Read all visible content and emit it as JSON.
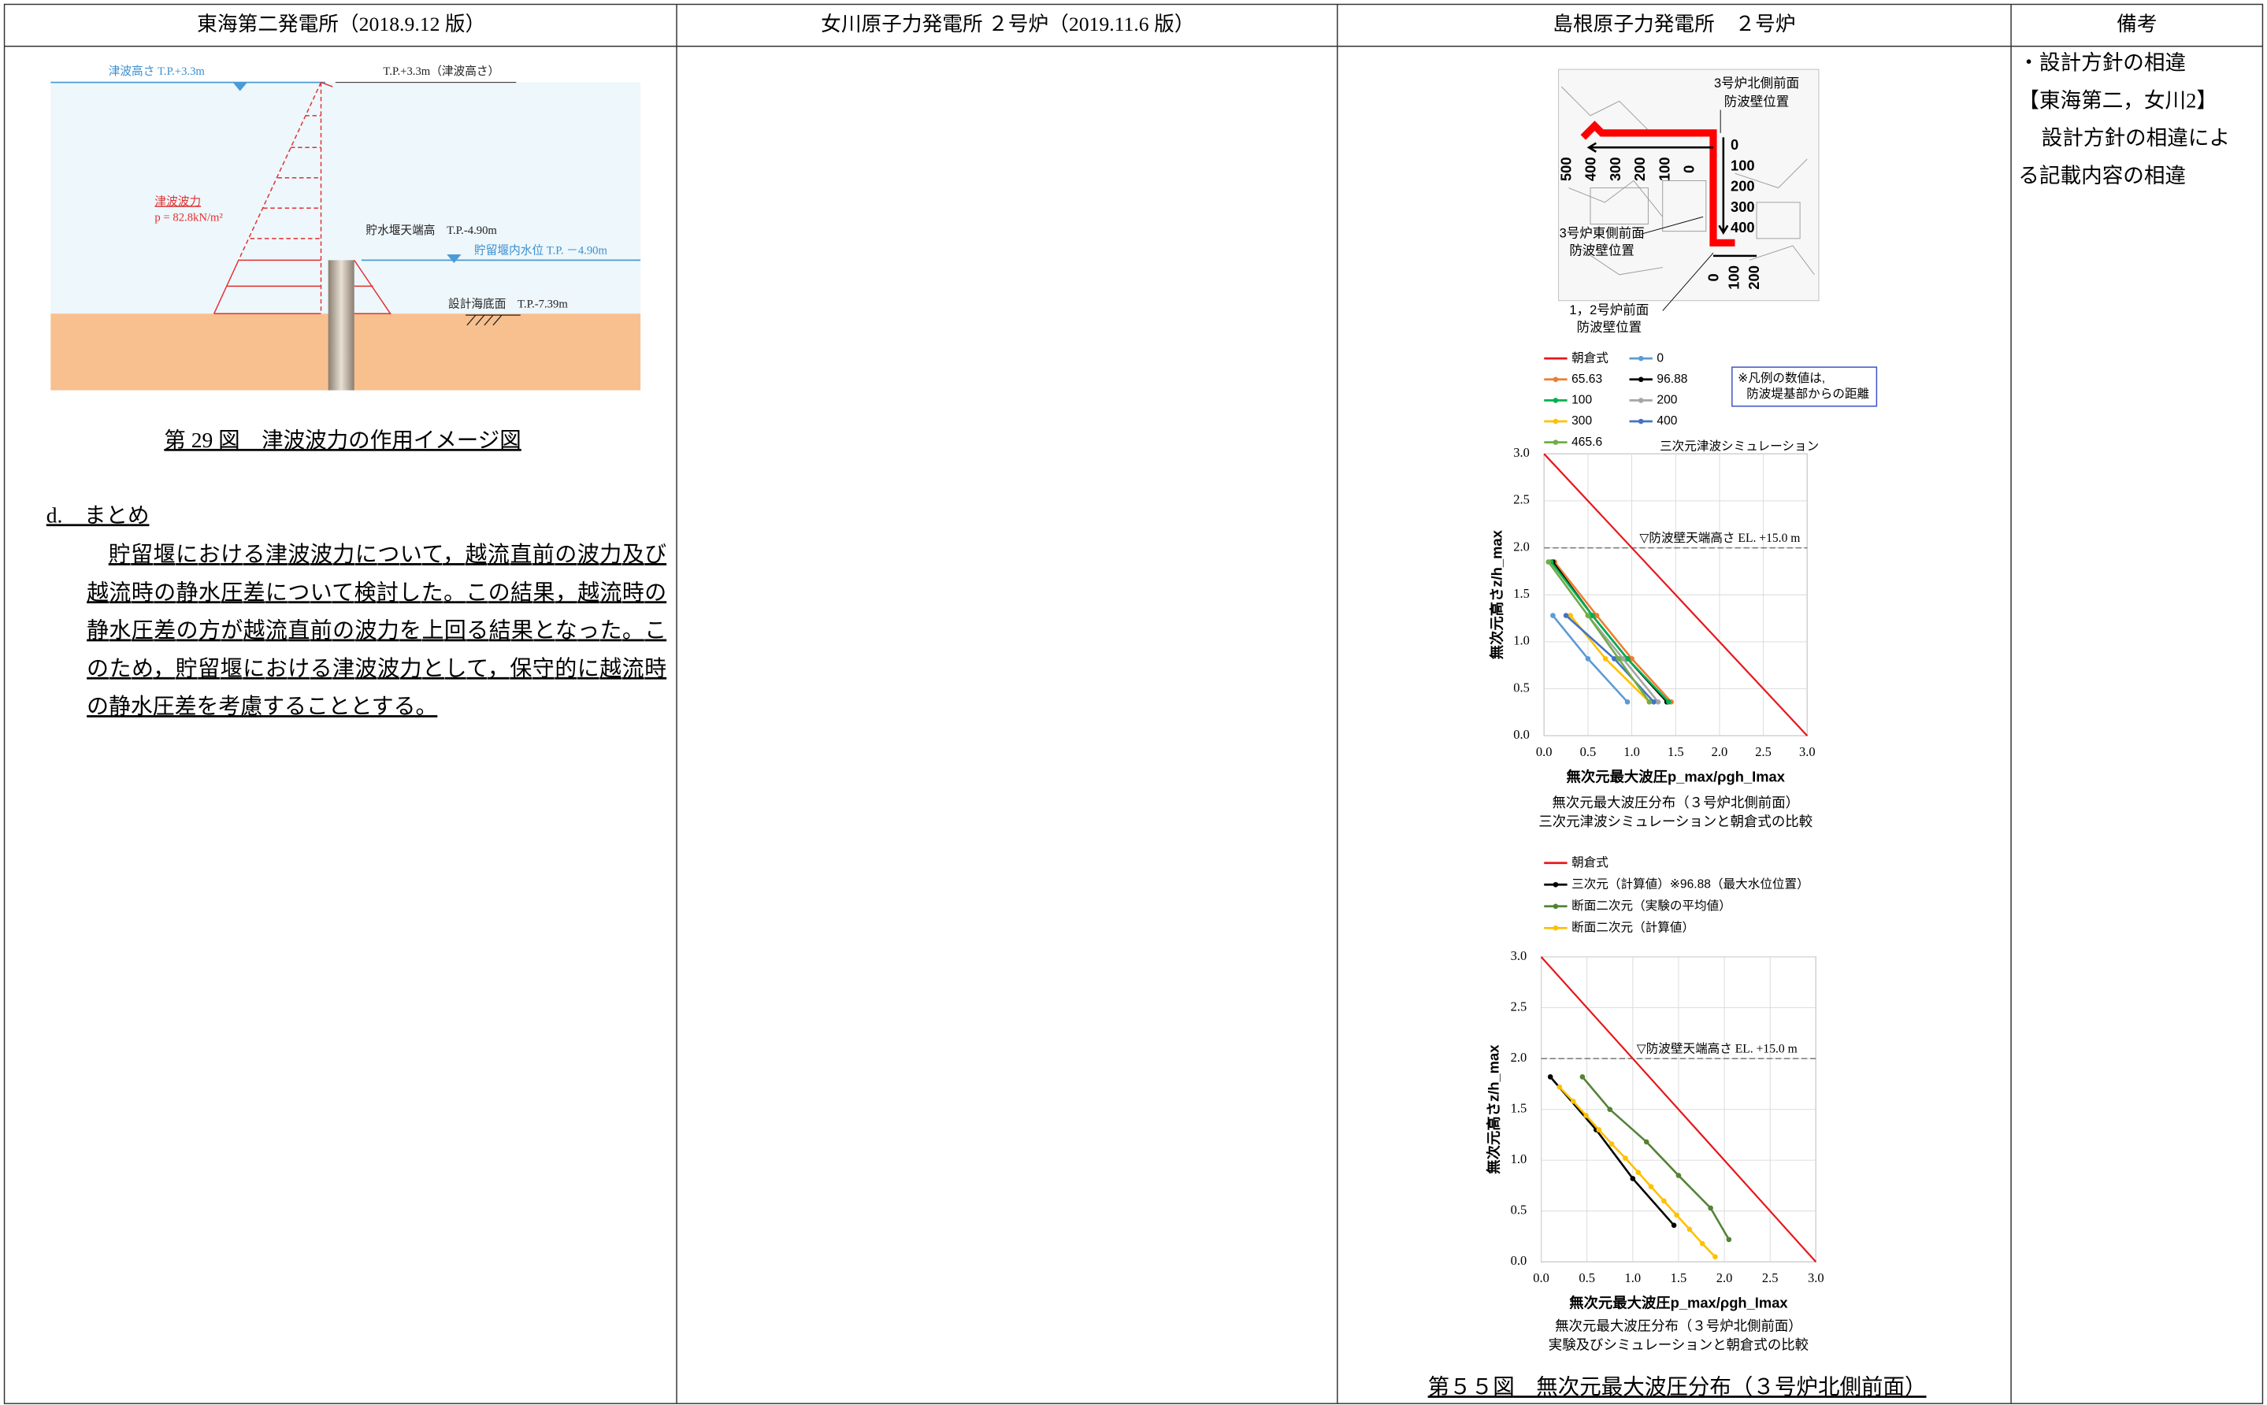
{
  "header": {
    "columns": [
      "東海第二発電所（2018.9.12 版）",
      "女川原子力発電所 ２号炉（2019.11.6 版）",
      "島根原子力発電所　２号炉",
      "備考"
    ]
  },
  "tokai": {
    "figure": {
      "labels": [
        "津波高さ T.P.+3.3m",
        "T.P.+3.3m（津波高さ）",
        "津波波力",
        "p = 82.8kN/m²",
        "貯水堰天端高　T.P.-4.90m",
        "貯留堰内水位 T.P. －4.90m",
        "設計海底面　T.P.-7.39m"
      ]
    },
    "caption": "第 29 図　津波波力の作用イメージ図",
    "section": "d.　まとめ",
    "paragraph": [
      "貯留堰における津波波力について，越流直前の波力及び",
      "越流時の静水圧差について検討した。この結果，越流時の",
      "静水圧差の方が越流直前の波力を上回る結果となった。こ",
      "のため，貯留堰における津波波力として，保守的に越流時",
      "の静水圧差を考慮することとする。"
    ]
  },
  "shimane": {
    "map": {
      "labels": [
        "3号炉北側前面",
        "防波壁位置",
        "3号炉東側前面",
        "防波壁位置",
        "1，2号炉前面",
        "防波壁位置"
      ],
      "scale_top": [
        "500",
        "400",
        "300",
        "200",
        "100",
        "0"
      ],
      "scale_right": [
        "0",
        "100",
        "200",
        "300",
        "400"
      ],
      "scale_bottom": [
        "0",
        "100",
        "200"
      ]
    },
    "charts": [
      {
        "type": "line",
        "title": "三次元津波シミュレーション",
        "note": [
          "※凡例の数値は,",
          "防波堤基部からの距離"
        ],
        "x_label": "無次元最大波圧p_max/ρgh_Imax",
        "y_label": "無次元高さz/h_max",
        "caption": [
          "無次元最大波圧分布（３号炉北側前面）",
          "三次元津波シミュレーションと朝倉式の比較"
        ],
        "xlim": [
          0,
          3
        ],
        "ylim": [
          0,
          3
        ],
        "xticks": [
          {
            "value": 0,
            "label": "0.0"
          },
          0.5,
          {
            "value": 1,
            "label": "1.0"
          },
          1.5,
          {
            "value": 2,
            "label": "2.0"
          },
          2.5,
          {
            "value": 3,
            "label": "3.0"
          }
        ],
        "yticks": [
          {
            "value": 0,
            "label": "0.0"
          },
          0.5,
          {
            "value": 1,
            "label": "1.0"
          },
          1.5,
          {
            "value": 2,
            "label": "2.0"
          },
          2.5,
          {
            "value": 3,
            "label": "3.0"
          }
        ],
        "hline": {
          "value": 2,
          "label": "▽防波壁天端高さ EL. +15.0 m"
        },
        "grid": true,
        "series": [
          {
            "name": "朝倉式",
            "color": "#e8161b",
            "x": [
              0,
              3
            ],
            "values": [
              3,
              0
            ],
            "markers": false
          },
          {
            "name": "0",
            "color": "#5b9bd5",
            "x": [
              0.1,
              0.5,
              0.95
            ],
            "values": [
              1.28,
              0.82,
              0.36
            ],
            "markers": true
          },
          {
            "name": "65.63",
            "color": "#ed7d31",
            "x": [
              0.12,
              0.6,
              1.0,
              1.45
            ],
            "values": [
              1.85,
              1.28,
              0.82,
              0.36
            ],
            "markers": true
          },
          {
            "name": "96.88",
            "color": "#000000",
            "x": [
              0.1,
              0.55,
              0.95,
              1.4
            ],
            "values": [
              1.85,
              1.28,
              0.82,
              0.36
            ],
            "markers": true
          },
          {
            "name": "100",
            "color": "#00b050",
            "x": [
              0.08,
              0.55,
              0.95,
              1.42
            ],
            "values": [
              1.85,
              1.28,
              0.82,
              0.36
            ],
            "markers": true
          },
          {
            "name": "200",
            "color": "#a5a5a5",
            "x": [
              0.05,
              0.5,
              0.9,
              1.3
            ],
            "values": [
              1.85,
              1.28,
              0.82,
              0.36
            ],
            "markers": true
          },
          {
            "name": "300",
            "color": "#ffc000",
            "x": [
              0.3,
              0.7,
              1.2
            ],
            "values": [
              1.28,
              0.82,
              0.36
            ],
            "markers": true
          },
          {
            "name": "400",
            "color": "#4472c4",
            "x": [
              0.25,
              0.8,
              1.25
            ],
            "values": [
              1.28,
              0.82,
              0.36
            ],
            "markers": true
          },
          {
            "name": "465.6",
            "color": "#70ad47",
            "x": [
              0.05,
              0.5,
              0.85,
              1.2
            ],
            "values": [
              1.85,
              1.28,
              0.82,
              0.36
            ],
            "markers": true
          }
        ]
      },
      {
        "type": "line",
        "x_label": "無次元最大波圧p_max/ρgh_Imax",
        "y_label": "無次元高さz/h_max",
        "caption": [
          "無次元最大波圧分布（３号炉北側前面）",
          "実験及びシミュレーションと朝倉式の比較"
        ],
        "xlim": [
          0,
          3
        ],
        "ylim": [
          0,
          3
        ],
        "xticks": [
          {
            "value": 0,
            "label": "0.0"
          },
          0.5,
          {
            "value": 1,
            "label": "1.0"
          },
          1.5,
          {
            "value": 2,
            "label": "2.0"
          },
          2.5,
          {
            "value": 3,
            "label": "3.0"
          }
        ],
        "yticks": [
          {
            "value": 0,
            "label": "0.0"
          },
          0.5,
          {
            "value": 1,
            "label": "1.0"
          },
          1.5,
          {
            "value": 2,
            "label": "2.0"
          },
          2.5,
          {
            "value": 3,
            "label": "3.0"
          }
        ],
        "hline": {
          "value": 2,
          "label": "▽防波壁天端高さ EL. +15.0 m"
        },
        "grid": true,
        "series": [
          {
            "name": "朝倉式",
            "color": "#e8161b",
            "x": [
              0,
              3
            ],
            "values": [
              3,
              0
            ],
            "markers": false
          },
          {
            "name": "三次元（計算値）※96.88（最大水位位置）",
            "color": "#000000",
            "x": [
              0.1,
              0.6,
              1.0,
              1.45
            ],
            "values": [
              1.82,
              1.3,
              0.82,
              0.36
            ],
            "markers": true
          },
          {
            "name": "断面二次元（実験の平均値）",
            "color": "#548235",
            "x": [
              0.45,
              0.75,
              1.15,
              1.5,
              1.85,
              2.05
            ],
            "values": [
              1.82,
              1.5,
              1.18,
              0.85,
              0.53,
              0.22
            ],
            "markers": true
          },
          {
            "name": "断面二次元（計算値）",
            "color": "#ffc000",
            "x": [
              0.2,
              0.35,
              0.49,
              0.63,
              0.77,
              0.92,
              1.06,
              1.2,
              1.34,
              1.48,
              1.62,
              1.76,
              1.9
            ],
            "values": [
              1.72,
              1.58,
              1.44,
              1.3,
              1.16,
              1.02,
              0.88,
              0.74,
              0.6,
              0.46,
              0.32,
              0.18,
              0.05
            ],
            "markers": true
          }
        ]
      }
    ],
    "caption": "第５５図　無次元最大波圧分布（３号炉北側前面）"
  },
  "remarks": [
    "・設計方針の相違",
    "【東海第二，女川2】",
    "設計方針の相違によ",
    "る記載内容の相違"
  ]
}
